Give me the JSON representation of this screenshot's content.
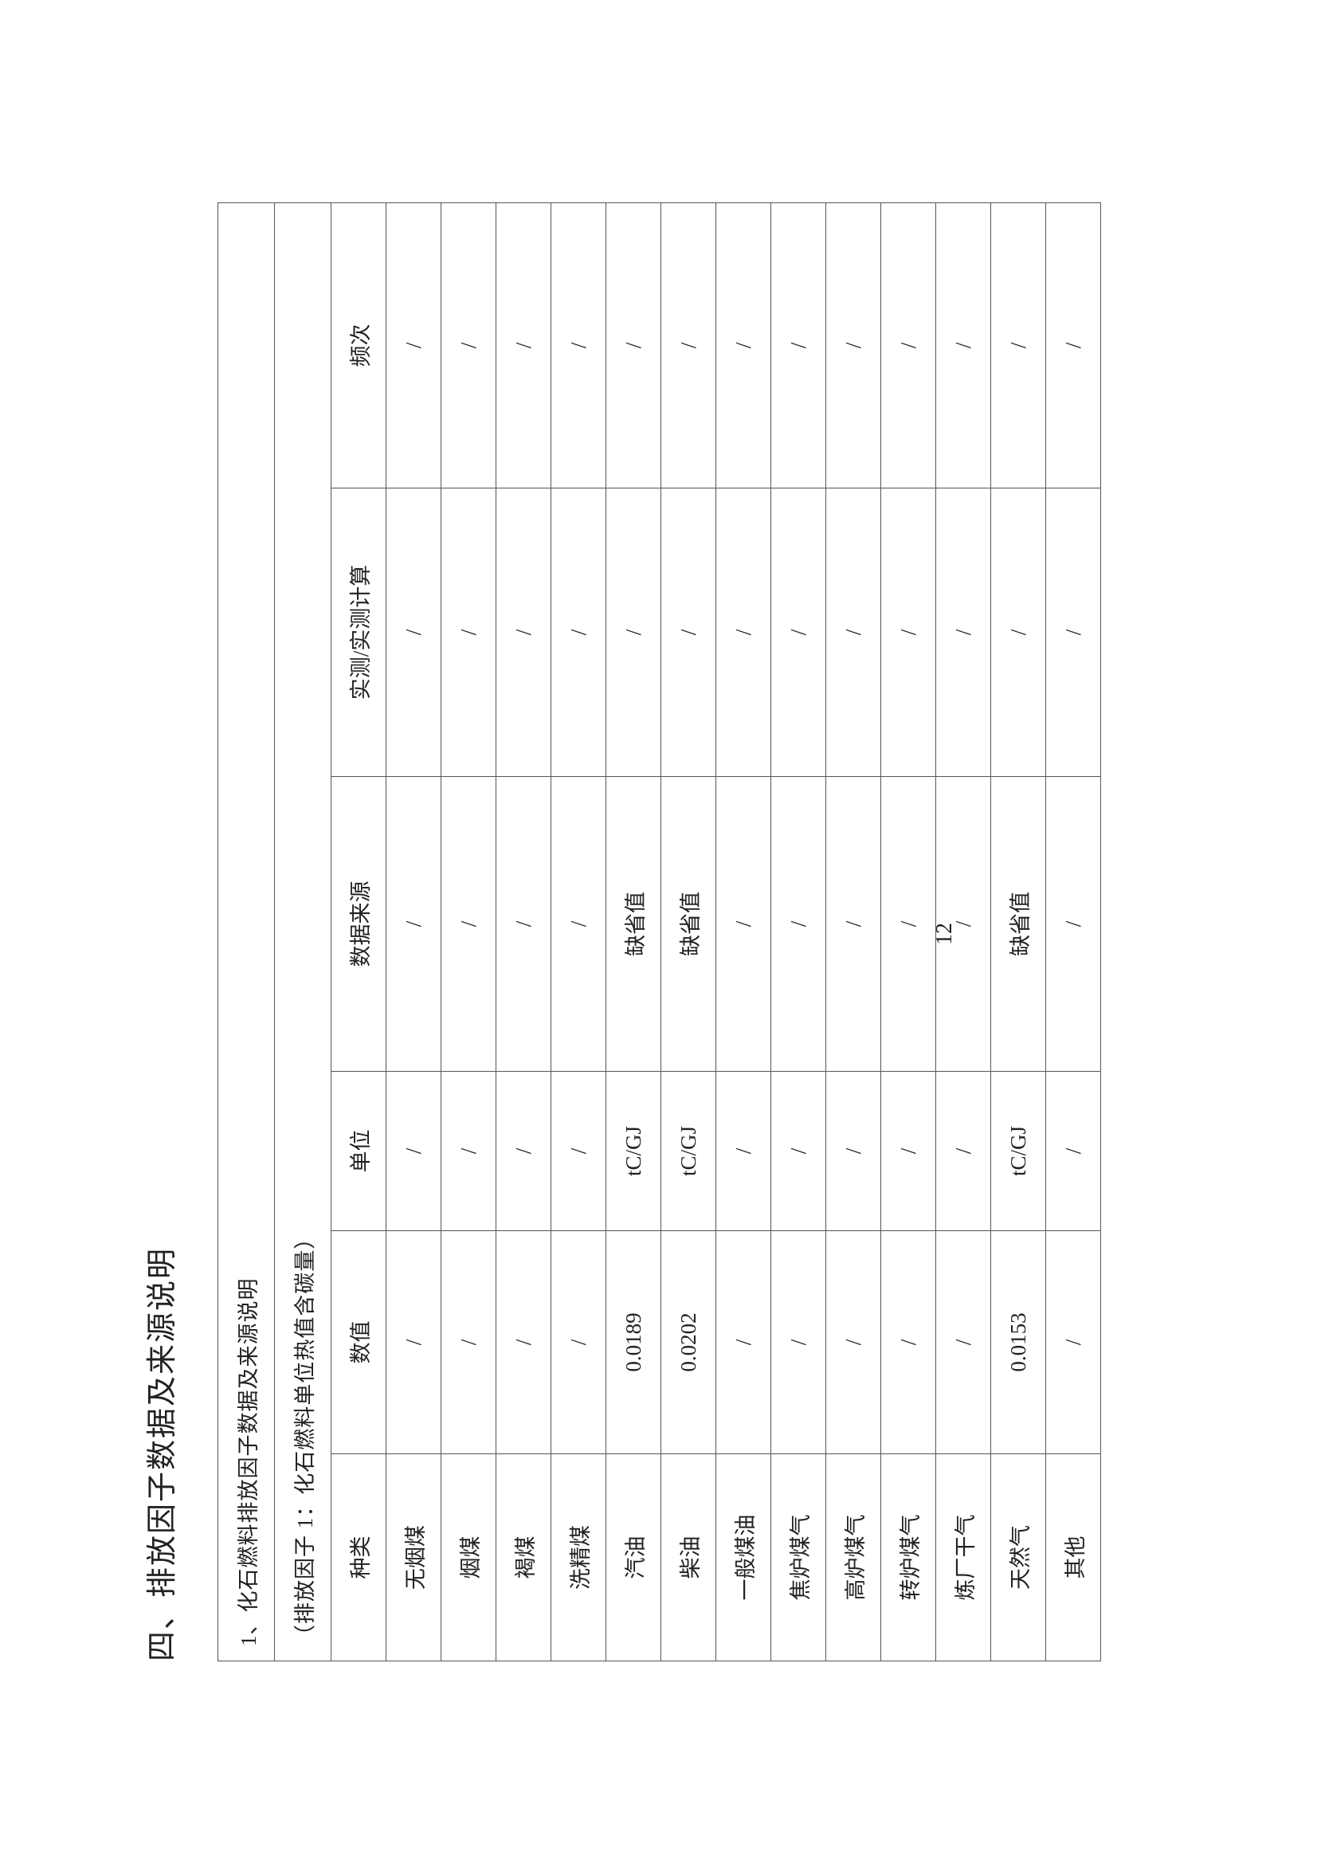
{
  "heading": "四、排放因子数据及来源说明",
  "section_title": "1、化石燃料排放因子数据及来源说明",
  "subtitle": "（排放因子 1：化石燃料单位热值含碳量）",
  "columns": [
    "种类",
    "数值",
    "单位",
    "数据来源",
    "实测/实测计算",
    "频次"
  ],
  "rows": [
    [
      "无烟煤",
      "/",
      "/",
      "/",
      "/",
      "/"
    ],
    [
      "烟煤",
      "/",
      "/",
      "/",
      "/",
      "/"
    ],
    [
      "褐煤",
      "/",
      "/",
      "/",
      "/",
      "/"
    ],
    [
      "洗精煤",
      "/",
      "/",
      "/",
      "/",
      "/"
    ],
    [
      "汽油",
      "0.0189",
      "tC/GJ",
      "缺省值",
      "/",
      "/"
    ],
    [
      "柴油",
      "0.0202",
      "tC/GJ",
      "缺省值",
      "/",
      "/"
    ],
    [
      "一般煤油",
      "/",
      "/",
      "/",
      "/",
      "/"
    ],
    [
      "焦炉煤气",
      "/",
      "/",
      "/",
      "/",
      "/"
    ],
    [
      "高炉煤气",
      "/",
      "/",
      "/",
      "/",
      "/"
    ],
    [
      "转炉煤气",
      "/",
      "/",
      "/",
      "/",
      "/"
    ],
    [
      "炼厂干气",
      "/",
      "/",
      "/",
      "/",
      "/"
    ],
    [
      "天然气",
      "0.0153",
      "tC/GJ",
      "缺省值",
      "/",
      "/"
    ],
    [
      "其他",
      "/",
      "/",
      "/",
      "/",
      "/"
    ]
  ],
  "page_number": "12"
}
